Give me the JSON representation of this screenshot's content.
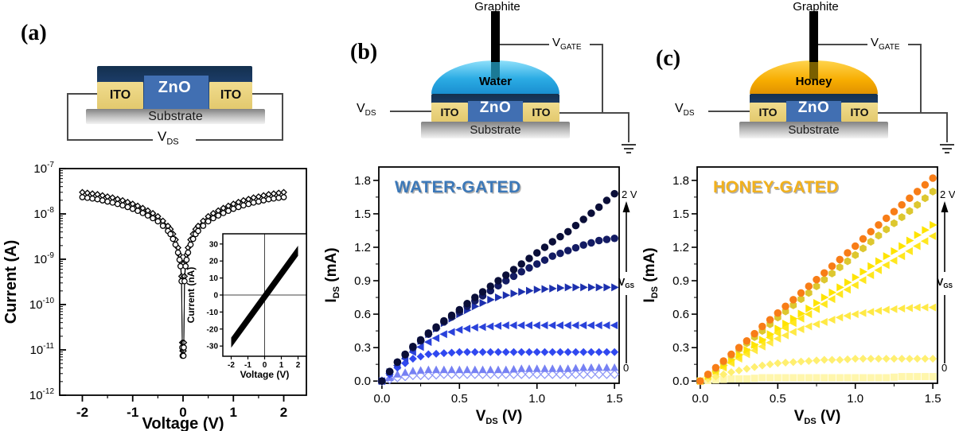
{
  "schematics": {
    "a": {
      "panel_label": "(a)",
      "zno": "ZnO",
      "ito": "ITO",
      "substrate": "Substrate",
      "vds": {
        "main": "V",
        "sub": "DS"
      }
    },
    "b": {
      "panel_label": "(b)",
      "graphite": "Graphite",
      "liquid": "Water",
      "zno": "ZnO",
      "ito": "ITO",
      "substrate": "Substrate",
      "vds": {
        "main": "V",
        "sub": "DS"
      },
      "vgate": {
        "main": "V",
        "sub": "GATE"
      }
    },
    "c": {
      "panel_label": "(c)",
      "graphite": "Graphite",
      "liquid": "Honey",
      "zno": "ZnO",
      "ito": "ITO",
      "substrate": "Substrate",
      "vds": {
        "main": "V",
        "sub": "DS"
      },
      "vgate": {
        "main": "V",
        "sub": "GATE"
      }
    }
  },
  "chart_data": [
    {
      "type": "scatter",
      "panel": "(a)",
      "xlabel": "Voltage (V)",
      "ylabel": "Current (A)",
      "x_ticks": [
        -2,
        -1,
        0,
        1,
        2
      ],
      "xlim": [
        -2.45,
        2.45
      ],
      "y_scale": "log",
      "y_exponents": [
        -7,
        -8,
        -9,
        -10,
        -11,
        -12
      ],
      "ylim_exponents": [
        -7,
        -12
      ],
      "v_abs": [
        2.0,
        1.9,
        1.8,
        1.7,
        1.6,
        1.5,
        1.4,
        1.3,
        1.2,
        1.1,
        1.0,
        0.9,
        0.8,
        0.7,
        0.6,
        0.5,
        0.4,
        0.3,
        0.25,
        0.2,
        0.15,
        0.1,
        0.07,
        0.05,
        0.03,
        0.015,
        0.008
      ],
      "i": [
        3e-08,
        2.9e-08,
        2.8e-08,
        2.7e-08,
        2.55e-08,
        2.4e-08,
        2.28e-08,
        2.12e-08,
        1.98e-08,
        1.82e-08,
        1.66e-08,
        1.5e-08,
        1.34e-08,
        1.18e-08,
        1.03e-08,
        8.8e-09,
        7e-09,
        5.4e-09,
        4.6e-09,
        3.6e-09,
        2.7e-09,
        1.8e-09,
        1.25e-09,
        9e-10,
        4.2e-10,
        1.45e-11,
        9.5e-12
      ],
      "series": [
        {
          "name": "sweep-diamonds",
          "marker": "diamond-open",
          "color": "#000000",
          "scale": 1.0
        },
        {
          "name": "sweep-circles",
          "marker": "circle-open",
          "color": "#000000",
          "scale": 0.78
        }
      ],
      "inset": {
        "xlabel": "Voltage (V)",
        "ylabel": "Current (nA)",
        "x_ticks": [
          -2,
          -1,
          0,
          1,
          2
        ],
        "y_ticks": [
          30,
          20,
          10,
          0,
          -10,
          -20,
          -30
        ],
        "xlim": [
          -2.5,
          2.5
        ],
        "ylim": [
          -36,
          36
        ],
        "band": [
          [
            -2,
            -25
          ],
          [
            2,
            29
          ],
          [
            2,
            23
          ],
          [
            -2,
            -31
          ]
        ]
      }
    },
    {
      "type": "scatter",
      "panel": "(b)",
      "title": "WATER-GATED",
      "title_color": "#3c78b8",
      "xlabel_parts": {
        "main": "V",
        "sub": "DS",
        "rest": " (V)"
      },
      "ylabel_parts": {
        "main": "I",
        "sub": "DS",
        "rest": " (mA)"
      },
      "x_ticks": [
        0,
        0.5,
        1.0,
        1.5
      ],
      "y_ticks": [
        0,
        0.3,
        0.6,
        0.9,
        1.2,
        1.5,
        1.8
      ],
      "xlim": [
        0,
        1.5
      ],
      "ylim": [
        0,
        1.9
      ],
      "x": [
        0,
        0.1,
        0.2,
        0.3,
        0.4,
        0.5,
        0.6,
        0.7,
        0.8,
        0.9,
        1.0,
        1.1,
        1.2,
        1.3,
        1.4,
        1.5
      ],
      "series": [
        {
          "name": "VGS = 2 V (top)",
          "marker": "circle",
          "color": "#0a0e38",
          "values": [
            0,
            0.17,
            0.31,
            0.43,
            0.54,
            0.64,
            0.75,
            0.85,
            0.95,
            1.05,
            1.15,
            1.25,
            1.34,
            1.45,
            1.56,
            1.68
          ]
        },
        {
          "name": "VGS step 2",
          "marker": "circle",
          "color": "#131b63",
          "values": [
            0,
            0.17,
            0.3,
            0.42,
            0.53,
            0.62,
            0.72,
            0.81,
            0.9,
            0.98,
            1.05,
            1.12,
            1.17,
            1.22,
            1.26,
            1.28
          ]
        },
        {
          "name": "VGS step 3",
          "marker": "tri-right",
          "color": "#1c30ae",
          "values": [
            0,
            0.16,
            0.3,
            0.42,
            0.52,
            0.6,
            0.67,
            0.73,
            0.77,
            0.8,
            0.82,
            0.83,
            0.84,
            0.84,
            0.84,
            0.84
          ]
        },
        {
          "name": "VGS step 4",
          "marker": "tri-left",
          "color": "#2a42da",
          "values": [
            0,
            0.14,
            0.26,
            0.35,
            0.42,
            0.46,
            0.48,
            0.49,
            0.5,
            0.5,
            0.5,
            0.5,
            0.5,
            0.5,
            0.5,
            0.5
          ]
        },
        {
          "name": "VGS step 5",
          "marker": "diamond",
          "color": "#3048f0",
          "values": [
            0,
            0.12,
            0.2,
            0.24,
            0.25,
            0.26,
            0.26,
            0.26,
            0.26,
            0.26,
            0.26,
            0.26,
            0.26,
            0.26,
            0.26,
            0.26
          ]
        },
        {
          "name": "VGS step 6",
          "marker": "tri-up",
          "color": "#7681f3",
          "values": [
            0,
            0.06,
            0.09,
            0.1,
            0.1,
            0.1,
            0.1,
            0.1,
            0.1,
            0.11,
            0.11,
            0.11,
            0.11,
            0.12,
            0.12,
            0.12
          ]
        },
        {
          "name": "VGS = 0 (bottom)",
          "marker": "diamond-open",
          "color": "#8f98f7",
          "values": [
            0,
            0.03,
            0.05,
            0.05,
            0.06,
            0.06,
            0.06,
            0.06,
            0.06,
            0.06,
            0.06,
            0.06,
            0.06,
            0.06,
            0.06,
            0.06
          ]
        }
      ],
      "annotations": {
        "gate_top": "2 V",
        "gate_bottom": "0",
        "arrow_label": {
          "main": "V",
          "sub": "GS"
        }
      }
    },
    {
      "type": "scatter",
      "panel": "(c)",
      "title": "HONEY-GATED",
      "title_color": "#f2b11c",
      "xlabel_parts": {
        "main": "V",
        "sub": "DS",
        "rest": " (V)"
      },
      "ylabel_parts": {
        "main": "I",
        "sub": "DS",
        "rest": " (mA)"
      },
      "x_ticks": [
        0,
        0.5,
        1.0,
        1.5
      ],
      "y_ticks": [
        0,
        0.3,
        0.6,
        0.9,
        1.2,
        1.5,
        1.8
      ],
      "xlim": [
        0,
        1.5
      ],
      "ylim": [
        0,
        1.9
      ],
      "x": [
        0,
        0.1,
        0.2,
        0.3,
        0.4,
        0.5,
        0.6,
        0.7,
        0.8,
        0.9,
        1.0,
        1.1,
        1.2,
        1.3,
        1.4,
        1.5
      ],
      "series": [
        {
          "name": "VGS = 2 V (top)",
          "marker": "circle",
          "color": "#f87d17",
          "values": [
            0,
            0.12,
            0.24,
            0.36,
            0.49,
            0.61,
            0.73,
            0.85,
            0.97,
            1.09,
            1.21,
            1.34,
            1.46,
            1.58,
            1.7,
            1.82
          ]
        },
        {
          "name": "VGS step 2",
          "marker": "hexagon",
          "color": "#ddc72f",
          "values": [
            0,
            0.11,
            0.23,
            0.34,
            0.45,
            0.57,
            0.68,
            0.79,
            0.91,
            1.02,
            1.13,
            1.25,
            1.36,
            1.47,
            1.58,
            1.7
          ]
        },
        {
          "name": "VGS step 3",
          "marker": "tri-right",
          "color": "#ffe400",
          "values": [
            0,
            0.09,
            0.19,
            0.28,
            0.37,
            0.47,
            0.56,
            0.65,
            0.75,
            0.84,
            0.93,
            1.03,
            1.12,
            1.21,
            1.31,
            1.4
          ]
        },
        {
          "name": "VGS step 4",
          "marker": "tri-left",
          "color": "#ffe71f",
          "values": [
            0,
            0.09,
            0.17,
            0.26,
            0.35,
            0.43,
            0.52,
            0.6,
            0.69,
            0.78,
            0.86,
            0.95,
            1.04,
            1.12,
            1.21,
            1.3
          ]
        },
        {
          "name": "VGS step 5",
          "marker": "tri-left",
          "color": "#ffe945",
          "values": [
            0,
            0.08,
            0.16,
            0.24,
            0.31,
            0.38,
            0.44,
            0.49,
            0.53,
            0.57,
            0.6,
            0.62,
            0.64,
            0.65,
            0.66,
            0.66
          ]
        },
        {
          "name": "VGS step 6",
          "marker": "diamond",
          "color": "#ffef70",
          "values": [
            0,
            0.04,
            0.08,
            0.11,
            0.14,
            0.16,
            0.17,
            0.18,
            0.19,
            0.19,
            0.2,
            0.2,
            0.2,
            0.2,
            0.2,
            0.2
          ]
        },
        {
          "name": "VGS = 0 (bottom)",
          "marker": "square",
          "color": "#fff6ac",
          "values": [
            0,
            0.01,
            0.02,
            0.02,
            0.03,
            0.03,
            0.03,
            0.03,
            0.03,
            0.03,
            0.03,
            0.03,
            0.03,
            0.04,
            0.04,
            0.04
          ]
        }
      ],
      "annotations": {
        "gate_top": "2 V",
        "gate_bottom": "0",
        "arrow_label": {
          "main": "V",
          "sub": "GS"
        }
      }
    }
  ]
}
